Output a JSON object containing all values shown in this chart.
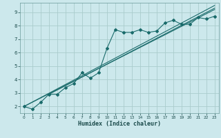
{
  "xlabel": "Humidex (Indice chaleur)",
  "bg_color": "#cce8ec",
  "grid_color": "#aacccc",
  "line_color": "#1a6b6b",
  "xlim": [
    -0.5,
    23.5
  ],
  "ylim": [
    1.5,
    9.7
  ],
  "xticks": [
    0,
    1,
    2,
    3,
    4,
    5,
    6,
    7,
    8,
    9,
    10,
    11,
    12,
    13,
    14,
    15,
    16,
    17,
    18,
    19,
    20,
    21,
    22,
    23
  ],
  "yticks": [
    2,
    3,
    4,
    5,
    6,
    7,
    8,
    9
  ],
  "humidex_x": [
    0,
    1,
    2,
    3,
    4,
    5,
    6,
    7,
    8,
    9,
    10,
    11,
    12,
    13,
    14,
    15,
    16,
    17,
    18,
    19,
    20,
    21,
    22,
    23
  ],
  "humidex_y": [
    2.0,
    1.8,
    2.3,
    2.9,
    2.9,
    3.4,
    3.7,
    4.5,
    4.1,
    4.5,
    6.3,
    7.7,
    7.5,
    7.5,
    7.7,
    7.5,
    7.6,
    8.2,
    8.4,
    8.1,
    8.1,
    8.6,
    8.5,
    8.7
  ],
  "ref_line1_x": [
    0,
    23
  ],
  "ref_line1_y": [
    2.0,
    9.5
  ],
  "ref_line2_x": [
    0,
    23
  ],
  "ref_line2_y": [
    2.0,
    9.2
  ],
  "ref_line3_x": [
    3,
    23
  ],
  "ref_line3_y": [
    2.9,
    9.3
  ]
}
